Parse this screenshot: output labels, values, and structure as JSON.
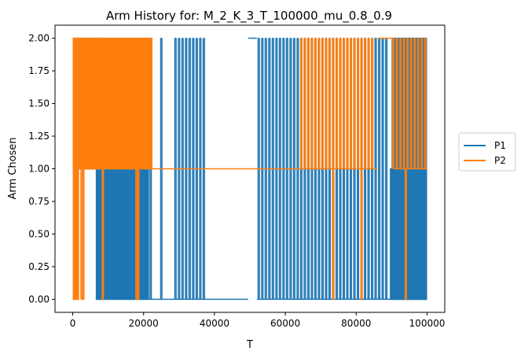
{
  "chart_data": {
    "type": "line",
    "title": "Arm History for: M_2_K_3_T_100000_mu_0.8_0.9",
    "xlabel": "T",
    "ylabel": "Arm Chosen",
    "xlim": [
      -5000,
      105000
    ],
    "ylim": [
      -0.1,
      2.1
    ],
    "x_ticks": [
      0,
      20000,
      40000,
      60000,
      80000,
      100000
    ],
    "x_tick_labels": [
      "0",
      "20000",
      "40000",
      "60000",
      "80000",
      "100000"
    ],
    "y_ticks": [
      0.0,
      0.25,
      0.5,
      0.75,
      1.0,
      1.25,
      1.5,
      1.75,
      2.0
    ],
    "y_tick_labels": [
      "0.00",
      "0.25",
      "0.50",
      "0.75",
      "1.00",
      "1.25",
      "1.50",
      "1.75",
      "2.00"
    ],
    "grid": false,
    "legend_position": "outside-right",
    "series": [
      {
        "name": "P1",
        "color": "#1f77b4",
        "step_segments": [
          {
            "x_start": 0,
            "x_end": 500,
            "value": 0
          },
          {
            "x_start": 500,
            "x_end": 6500,
            "value": 1
          },
          {
            "x_start": 6500,
            "x_end": 8500,
            "value": 0
          },
          {
            "x_start": 8500,
            "x_end": 21500,
            "value": 0
          },
          {
            "x_start": 21500,
            "x_end": 49500,
            "value": 0
          },
          {
            "x_start": 49500,
            "x_end": 52000,
            "value": 2
          },
          {
            "x_start": 52000,
            "x_end": 90000,
            "value": 0
          },
          {
            "x_start": 90000,
            "x_end": 100000,
            "value": 0
          }
        ],
        "dense_switching_ranges": [
          {
            "x_start": 0,
            "x_end": 6500,
            "values": [
              1,
              2
            ]
          },
          {
            "x_start": 6500,
            "x_end": 8500,
            "values": [
              0,
              1,
              2
            ]
          },
          {
            "x_start": 8500,
            "x_end": 21500,
            "values": [
              0,
              1
            ]
          },
          {
            "x_start": 89500,
            "x_end": 100000,
            "values": [
              0,
              1
            ]
          },
          {
            "x_start": 90000,
            "x_end": 100000,
            "values": [
              0,
              2
            ]
          }
        ],
        "pulses_0_to_2": [
          9200,
          10000,
          10800,
          11600,
          12400,
          13200,
          14000,
          14800,
          15600,
          16400,
          17200,
          18000,
          18800,
          19600,
          20400,
          21200,
          22000,
          25000,
          29000,
          30000,
          31000,
          32000,
          33000,
          34000,
          35000,
          36000,
          37000,
          52500,
          53500,
          54500,
          55500,
          56500,
          57500,
          58500,
          59500,
          60500,
          61500,
          62500,
          63500,
          64500,
          65500,
          66500,
          67500,
          68500,
          69500,
          70500,
          71500,
          72500,
          73500,
          74500,
          75500,
          76500,
          77500,
          78500,
          79500,
          80500,
          81500,
          82500,
          83500,
          84500,
          85500,
          86500,
          87500,
          88500
        ]
      },
      {
        "name": "P2",
        "color": "#ff7f0e",
        "step_segments": [
          {
            "x_start": 0,
            "x_end": 22000,
            "value": 1
          },
          {
            "x_start": 22000,
            "x_end": 86000,
            "value": 1
          },
          {
            "x_start": 86000,
            "x_end": 90500,
            "value": 2
          },
          {
            "x_start": 90500,
            "x_end": 100000,
            "value": 1
          }
        ],
        "dense_switching_ranges": [
          {
            "x_start": 0,
            "x_end": 1800,
            "values": [
              0,
              2
            ]
          },
          {
            "x_start": 1800,
            "x_end": 22500,
            "values": [
              1,
              2
            ]
          }
        ],
        "pulses_1_to_2": [
          64500,
          65500,
          66500,
          67500,
          68500,
          69500,
          70500,
          71500,
          72500,
          73500,
          74500,
          75500,
          76500,
          77500,
          78500,
          79500,
          80500,
          81500,
          82500,
          83500,
          84500,
          90500,
          91500,
          92500,
          93500,
          94500,
          95500,
          96500,
          97500,
          98500,
          99500
        ],
        "pulses_1_to_0": [
          2500,
          3000,
          8500,
          18000,
          18500,
          73500,
          81500,
          94000
        ]
      }
    ]
  }
}
